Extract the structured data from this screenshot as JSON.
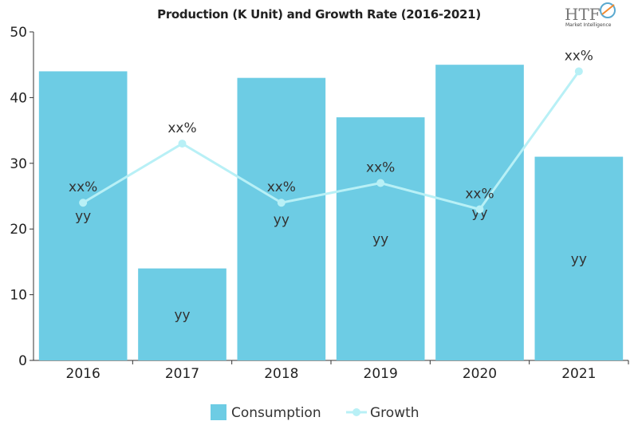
{
  "logo": {
    "text": "HTF",
    "subtitle": "Market Intelligence"
  },
  "colors": {
    "bar": "#6dcce4",
    "line": "#b8f0f6",
    "axis": "#333333",
    "text": "#222222"
  },
  "chart_data": {
    "type": "bar",
    "title": "Production (K Unit) and Growth Rate (2016-2021)",
    "categories": [
      "2016",
      "2017",
      "2018",
      "2019",
      "2020",
      "2021"
    ],
    "ylim": [
      0,
      50
    ],
    "yticks": [
      0,
      10,
      20,
      30,
      40,
      50
    ],
    "xlabel": "",
    "ylabel": "",
    "grid": false,
    "legend_position": "bottom",
    "series": [
      {
        "name": "Consumption",
        "type": "bar",
        "values": [
          44,
          14,
          43,
          37,
          45,
          31
        ],
        "labels": [
          "yy",
          "yy",
          "yy",
          "yy",
          "yy",
          "yy"
        ]
      },
      {
        "name": "Growth",
        "type": "line",
        "values": [
          24,
          33,
          24,
          27,
          23,
          44
        ],
        "labels": [
          "xx%",
          "xx%",
          "xx%",
          "xx%",
          "xx%",
          "xx%"
        ]
      }
    ]
  }
}
